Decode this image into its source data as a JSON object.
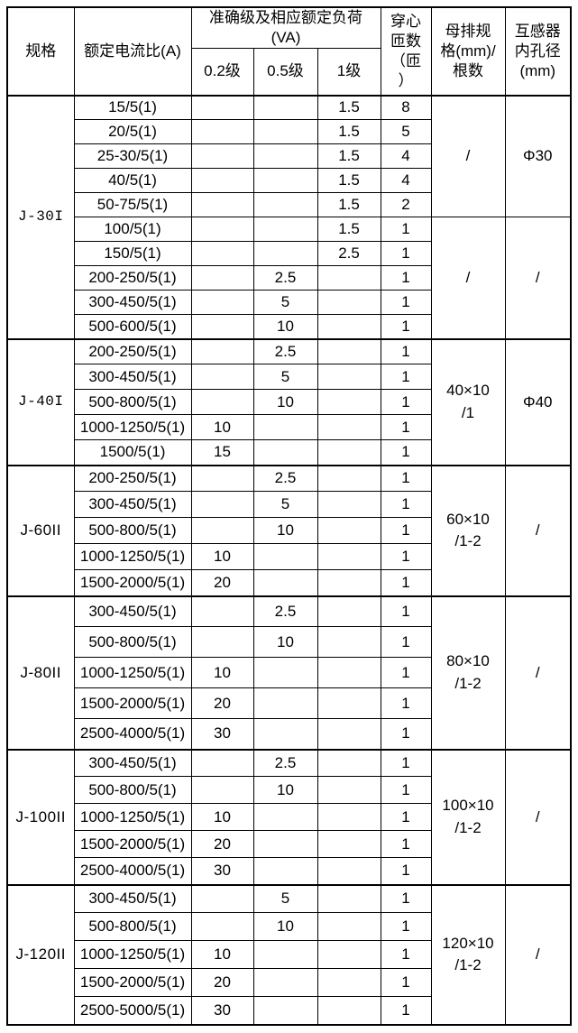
{
  "table": {
    "header": {
      "spec": "规格",
      "ratio": "额定电流比(A)",
      "accuracy_group": "准确级及相应额定负荷\n(VA)",
      "accuracy_cols": [
        "0.2级",
        "0.5级",
        "1级"
      ],
      "turns": "穿心\n匝数\n（匝\n）",
      "busbar": "母排规\n格(mm)/\n根数",
      "bore": "互感器\n内孔径\n(mm)"
    },
    "groups": [
      {
        "spec": "J-30I",
        "rows": [
          {
            "ratio": "15/5(1)",
            "a02": "",
            "a05": "",
            "a1": "1.5",
            "turns": "8"
          },
          {
            "ratio": "20/5(1)",
            "a02": "",
            "a05": "",
            "a1": "1.5",
            "turns": "5"
          },
          {
            "ratio": "25-30/5(1)",
            "a02": "",
            "a05": "",
            "a1": "1.5",
            "turns": "4"
          },
          {
            "ratio": "40/5(1)",
            "a02": "",
            "a05": "",
            "a1": "1.5",
            "turns": "4"
          },
          {
            "ratio": "50-75/5(1)",
            "a02": "",
            "a05": "",
            "a1": "1.5",
            "turns": "2"
          },
          {
            "ratio": "100/5(1)",
            "a02": "",
            "a05": "",
            "a1": "1.5",
            "turns": "1"
          },
          {
            "ratio": "150/5(1)",
            "a02": "",
            "a05": "",
            "a1": "2.5",
            "turns": "1"
          },
          {
            "ratio": "200-250/5(1)",
            "a02": "",
            "a05": "2.5",
            "a1": "",
            "turns": "1"
          },
          {
            "ratio": "300-450/5(1)",
            "a02": "",
            "a05": "5",
            "a1": "",
            "turns": "1"
          },
          {
            "ratio": "500-600/5(1)",
            "a02": "",
            "a05": "10",
            "a1": "",
            "turns": "1"
          }
        ],
        "merges": [
          {
            "start": 0,
            "span": 5,
            "busbar": "/",
            "bore": "Φ30"
          },
          {
            "start": 5,
            "span": 5,
            "busbar": "/",
            "bore": "/"
          }
        ]
      },
      {
        "spec": "J-40I",
        "rows": [
          {
            "ratio": "200-250/5(1)",
            "a02": "",
            "a05": "2.5",
            "a1": "",
            "turns": "1"
          },
          {
            "ratio": "300-450/5(1)",
            "a02": "",
            "a05": "5",
            "a1": "",
            "turns": "1"
          },
          {
            "ratio": "500-800/5(1)",
            "a02": "",
            "a05": "10",
            "a1": "",
            "turns": "1"
          },
          {
            "ratio": "1000-1250/5(1)",
            "a02": "10",
            "a05": "",
            "a1": "",
            "turns": "1"
          },
          {
            "ratio": "1500/5(1)",
            "a02": "15",
            "a05": "",
            "a1": "",
            "turns": "1"
          }
        ],
        "merges": [
          {
            "start": 0,
            "span": 5,
            "busbar": "40×10\n/1",
            "bore": "Φ40"
          }
        ]
      },
      {
        "spec": "J-60II",
        "rows": [
          {
            "ratio": "200-250/5(1)",
            "a02": "",
            "a05": "2.5",
            "a1": "",
            "turns": "1"
          },
          {
            "ratio": "300-450/5(1)",
            "a02": "",
            "a05": "5",
            "a1": "",
            "turns": "1"
          },
          {
            "ratio": "500-800/5(1)",
            "a02": "",
            "a05": "10",
            "a1": "",
            "turns": "1"
          },
          {
            "ratio": "1000-1250/5(1)",
            "a02": "10",
            "a05": "",
            "a1": "",
            "turns": "1"
          },
          {
            "ratio": "1500-2000/5(1)",
            "a02": "20",
            "a05": "",
            "a1": "",
            "turns": "1"
          }
        ],
        "merges": [
          {
            "start": 0,
            "span": 5,
            "busbar": "60×10\n/1-2",
            "bore": "/"
          }
        ]
      },
      {
        "spec": "J-80II",
        "rows": [
          {
            "ratio": "300-450/5(1)",
            "a02": "",
            "a05": "2.5",
            "a1": "",
            "turns": "1"
          },
          {
            "ratio": "500-800/5(1)",
            "a02": "",
            "a05": "10",
            "a1": "",
            "turns": "1"
          },
          {
            "ratio": "1000-1250/5(1)",
            "a02": "10",
            "a05": "",
            "a1": "",
            "turns": "1"
          },
          {
            "ratio": "1500-2000/5(1)",
            "a02": "20",
            "a05": "",
            "a1": "",
            "turns": "1"
          },
          {
            "ratio": "2500-4000/5(1)",
            "a02": "30",
            "a05": "",
            "a1": "",
            "turns": "1"
          }
        ],
        "merges": [
          {
            "start": 0,
            "span": 5,
            "busbar": "80×10\n/1-2",
            "bore": "/"
          }
        ]
      },
      {
        "spec": "J-100II",
        "rows": [
          {
            "ratio": "300-450/5(1)",
            "a02": "",
            "a05": "2.5",
            "a1": "",
            "turns": "1"
          },
          {
            "ratio": "500-800/5(1)",
            "a02": "",
            "a05": "10",
            "a1": "",
            "turns": "1"
          },
          {
            "ratio": "1000-1250/5(1)",
            "a02": "10",
            "a05": "",
            "a1": "",
            "turns": "1"
          },
          {
            "ratio": "1500-2000/5(1)",
            "a02": "20",
            "a05": "",
            "a1": "",
            "turns": "1"
          },
          {
            "ratio": "2500-4000/5(1)",
            "a02": "30",
            "a05": "",
            "a1": "",
            "turns": "1"
          }
        ],
        "merges": [
          {
            "start": 0,
            "span": 5,
            "busbar": "100×10\n/1-2",
            "bore": "/"
          }
        ]
      },
      {
        "spec": "J-120II",
        "rows": [
          {
            "ratio": "300-450/5(1)",
            "a02": "",
            "a05": "5",
            "a1": "",
            "turns": "1"
          },
          {
            "ratio": "500-800/5(1)",
            "a02": "",
            "a05": "10",
            "a1": "",
            "turns": "1"
          },
          {
            "ratio": "1000-1250/5(1)",
            "a02": "10",
            "a05": "",
            "a1": "",
            "turns": "1"
          },
          {
            "ratio": "1500-2000/5(1)",
            "a02": "20",
            "a05": "",
            "a1": "",
            "turns": "1"
          },
          {
            "ratio": "2500-5000/5(1)",
            "a02": "30",
            "a05": "",
            "a1": "",
            "turns": "1"
          }
        ],
        "merges": [
          {
            "start": 0,
            "span": 5,
            "busbar": "120×10\n/1-2",
            "bore": "/"
          }
        ]
      }
    ]
  }
}
